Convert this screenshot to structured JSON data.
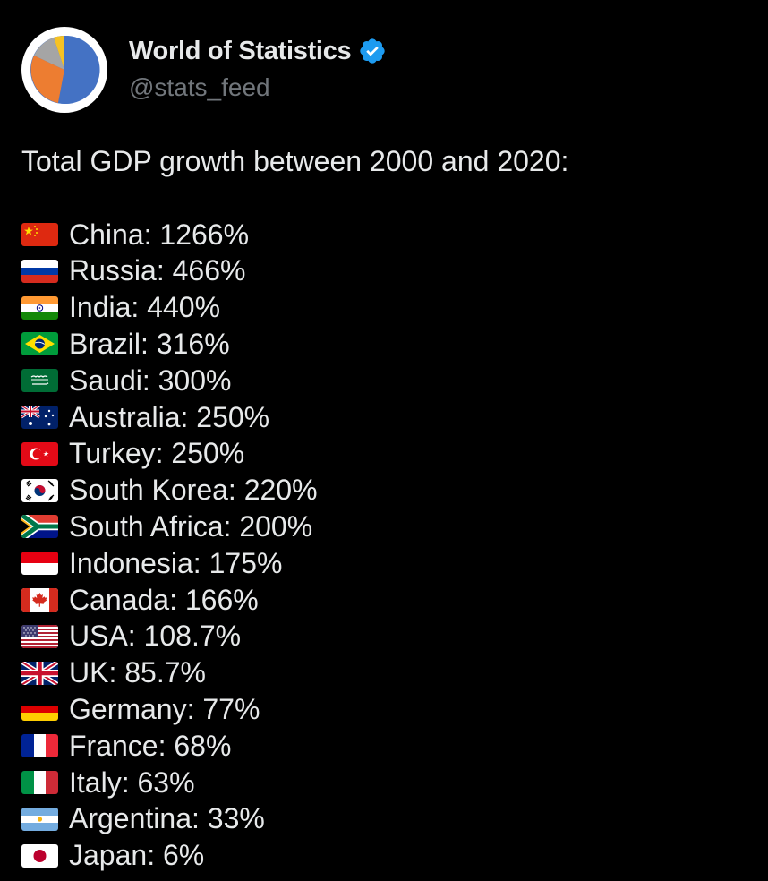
{
  "author": {
    "name": "World of Statistics",
    "handle": "@stats_feed",
    "verified_color": "#1d9bf0"
  },
  "tweet": {
    "title": "Total GDP growth between 2000 and 2020:",
    "items": [
      {
        "text": "China: 1266%",
        "flag": "china-flag-icon"
      },
      {
        "text": "Russia: 466%",
        "flag": "russia-flag-icon"
      },
      {
        "text": "India: 440%",
        "flag": "india-flag-icon"
      },
      {
        "text": "Brazil: 316%",
        "flag": "brazil-flag-icon"
      },
      {
        "text": "Saudi: 300%",
        "flag": "saudi-flag-icon"
      },
      {
        "text": "Australia: 250%",
        "flag": "australia-flag-icon"
      },
      {
        "text": "Turkey: 250%",
        "flag": "turkey-flag-icon"
      },
      {
        "text": "South Korea: 220%",
        "flag": "south-korea-flag-icon"
      },
      {
        "text": "South Africa: 200%",
        "flag": "south-africa-flag-icon"
      },
      {
        "text": "Indonesia: 175%",
        "flag": "indonesia-flag-icon"
      },
      {
        "text": "Canada: 166%",
        "flag": "canada-flag-icon"
      },
      {
        "text": "USA: 108.7%",
        "flag": "usa-flag-icon"
      },
      {
        "text": "UK: 85.7%",
        "flag": "uk-flag-icon"
      },
      {
        "text": "Germany: 77%",
        "flag": "germany-flag-icon"
      },
      {
        "text": "France: 68%",
        "flag": "france-flag-icon"
      },
      {
        "text": "Italy: 63%",
        "flag": "italy-flag-icon"
      },
      {
        "text": "Argentina: 33%",
        "flag": "argentina-flag-icon"
      },
      {
        "text": "Japan: 6%",
        "flag": "japan-flag-icon"
      }
    ]
  }
}
